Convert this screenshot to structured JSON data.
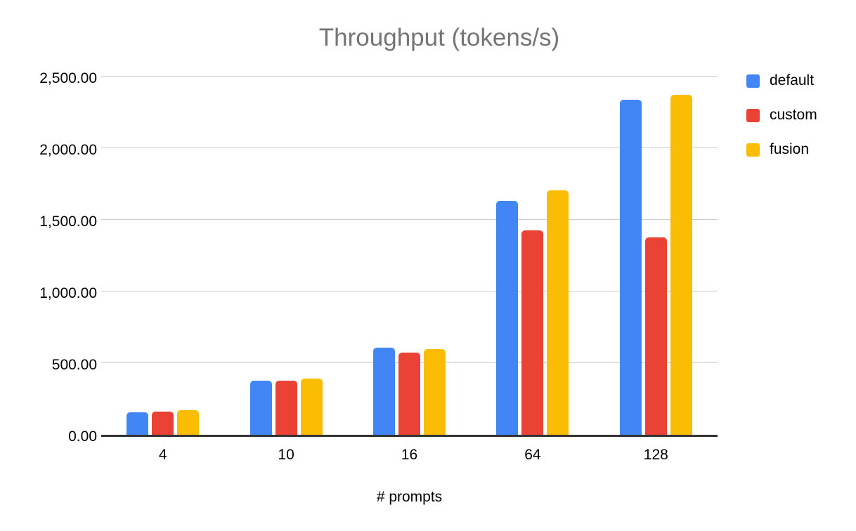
{
  "chart_data": {
    "type": "bar",
    "title": "Throughput (tokens/s)",
    "xlabel": "# prompts",
    "ylabel": "",
    "categories": [
      "4",
      "10",
      "16",
      "64",
      "128"
    ],
    "series": [
      {
        "name": "default",
        "color": "#4285F4",
        "values": [
          159,
          376,
          610,
          1632,
          2338
        ]
      },
      {
        "name": "custom",
        "color": "#EA4335",
        "values": [
          164,
          378,
          572,
          1426,
          1377
        ]
      },
      {
        "name": "fusion",
        "color": "#FBBC04",
        "values": [
          174,
          390,
          597,
          1704,
          2371
        ]
      }
    ],
    "ylim": [
      0,
      2500
    ],
    "y_ticks": [
      0,
      500,
      1000,
      1500,
      2000,
      2500
    ],
    "y_tick_labels": [
      "0.00",
      "500.00",
      "1,000.00",
      "1,500.00",
      "2,000.00",
      "2,500.00"
    ],
    "grid": true,
    "legend_position": "right"
  },
  "colors": {
    "title": "#757575",
    "axis_text": "#000000",
    "gridline": "#cccccc",
    "baseline": "#333333",
    "background": "#ffffff"
  }
}
